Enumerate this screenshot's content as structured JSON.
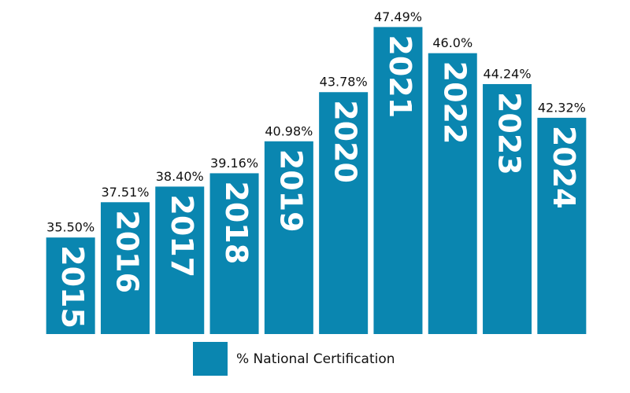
{
  "chart_data": {
    "type": "bar",
    "categories": [
      "2015",
      "2016",
      "2017",
      "2018",
      "2019",
      "2020",
      "2021",
      "2022",
      "2023",
      "2024"
    ],
    "series": [
      {
        "name": "% National Certification",
        "color": "#0a86b0",
        "values": [
          35.5,
          37.51,
          38.4,
          39.16,
          40.98,
          43.78,
          47.49,
          46.0,
          44.24,
          42.32
        ],
        "value_labels": [
          "35.50%",
          "37.51%",
          "38.40%",
          "39.16%",
          "40.98%",
          "43.78%",
          "47.49%",
          "46.0%",
          "44.24%",
          "42.32%"
        ]
      }
    ],
    "ylim": [
      30,
      48
    ]
  }
}
